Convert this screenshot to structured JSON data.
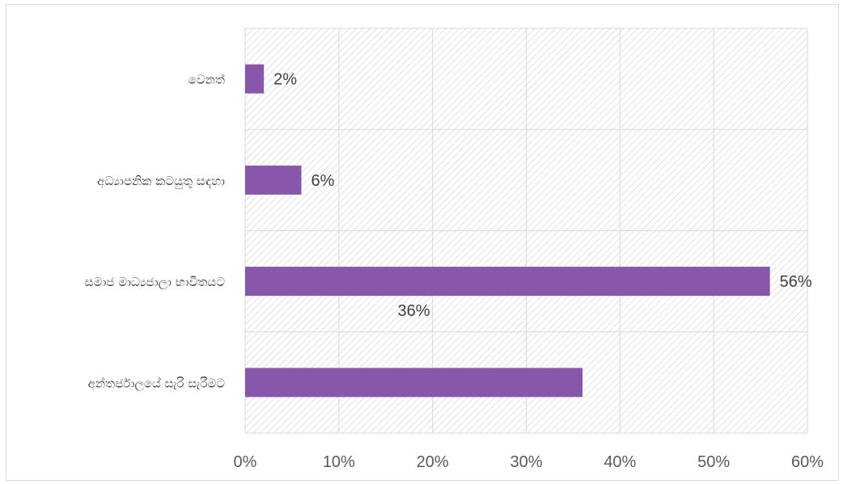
{
  "chart_data": {
    "type": "bar",
    "orientation": "horizontal",
    "categories": [
      "වෙනත්",
      "අධ්‍යාපනික කටයුතු සඳහා",
      "සමාජ මාධ්‍යජාලා භාවිතයට",
      "අන්තර්ජාලයේ සැරි සැරීමට"
    ],
    "values": [
      2,
      6,
      56,
      36
    ],
    "data_labels": [
      "2%",
      "6%",
      "56%",
      "36%"
    ],
    "xlim": [
      0,
      60
    ],
    "x_ticks": [
      0,
      10,
      20,
      30,
      40,
      50,
      60
    ],
    "x_tick_labels": [
      "0%",
      "10%",
      "20%",
      "30%",
      "40%",
      "50%",
      "60%"
    ],
    "bar_color": "#8856aa",
    "grid": true,
    "plot_background": "hatched",
    "title": "",
    "xlabel": "",
    "ylabel": ""
  }
}
